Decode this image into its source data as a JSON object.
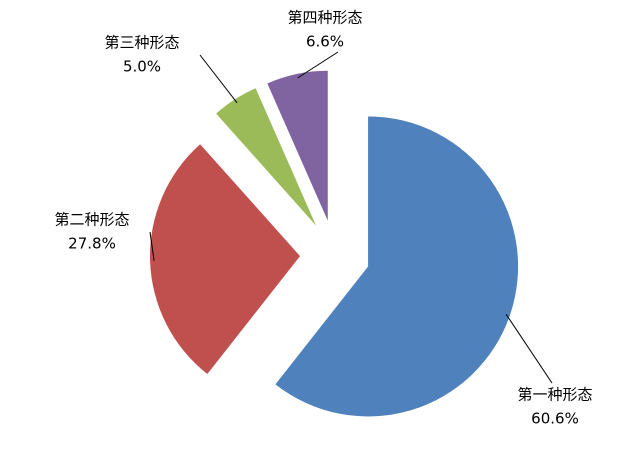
{
  "chart_data": {
    "type": "pie",
    "categories": [
      "第一种形态",
      "第二种形态",
      "第三种形态",
      "第四种形态"
    ],
    "values": [
      60.6,
      27.8,
      5.0,
      6.6
    ],
    "value_labels": [
      "60.6%",
      "27.8%",
      "5.0%",
      "6.6%"
    ],
    "colors": [
      "#4f81bd",
      "#c0504d",
      "#9bbb59",
      "#8064a2"
    ]
  }
}
